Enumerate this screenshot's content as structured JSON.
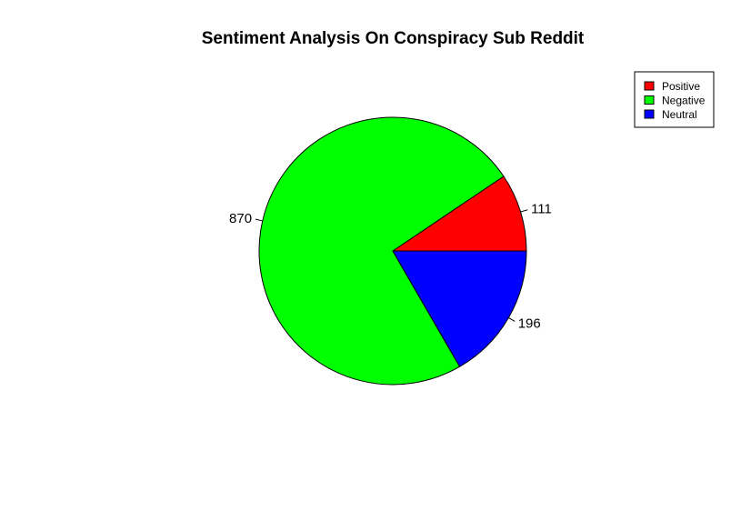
{
  "chart_data": {
    "type": "pie",
    "title": "Sentiment Analysis On Conspiracy Sub Reddit",
    "slices": [
      {
        "name": "Positive",
        "value": 111,
        "label": "111",
        "color": "#ff0000"
      },
      {
        "name": "Negative",
        "value": 870,
        "label": "870",
        "color": "#00ff00"
      },
      {
        "name": "Neutral",
        "value": 196,
        "label": "196",
        "color": "#0000ff"
      }
    ],
    "legend": {
      "placement": "top-right",
      "entries": [
        "Positive",
        "Negative",
        "Neutral"
      ]
    },
    "direction": "counterclockwise",
    "start": "3 o'clock"
  }
}
